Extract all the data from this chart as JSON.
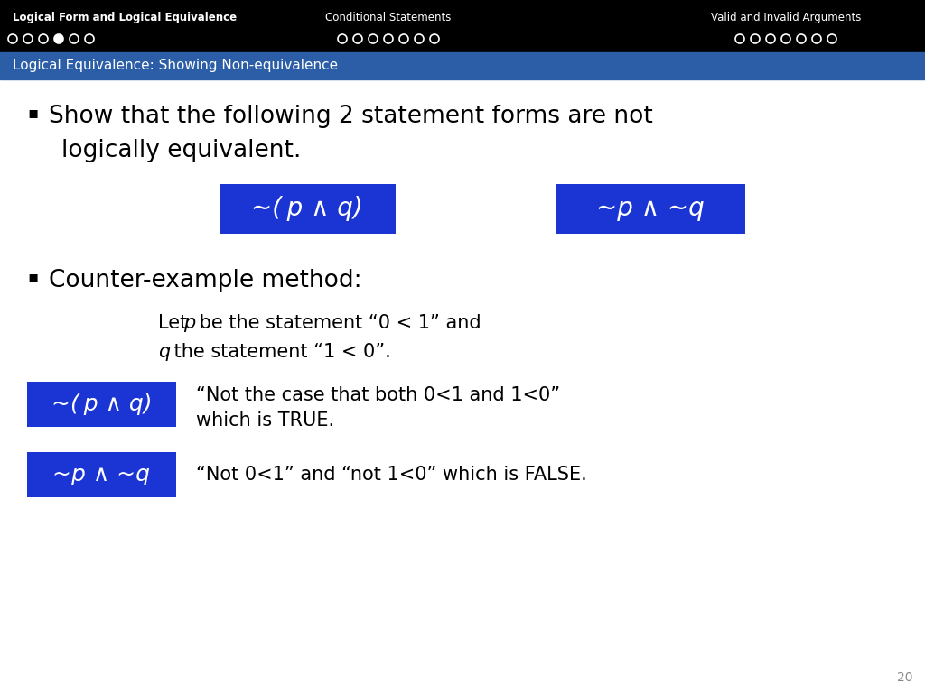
{
  "title_section": {
    "left_label": "Logical Form and Logical Equivalence",
    "center_label": "Conditional Statements",
    "right_label": "Valid and Invalid Arguments",
    "dots_left": [
      0,
      0,
      0,
      1,
      0,
      0
    ],
    "dots_center": [
      0,
      0,
      0,
      0,
      0,
      0,
      0
    ],
    "dots_right": [
      0,
      0,
      0,
      0,
      0,
      0,
      0
    ],
    "bg_color": "#000000",
    "text_color": "#ffffff"
  },
  "subtitle": "Logical Equivalence: Showing Non-equivalence",
  "subtitle_bg": "#2B5EA7",
  "subtitle_text_color": "#ffffff",
  "slide_bg": "#ffffff",
  "page_number": "20",
  "box1_label_parts": [
    "~(",
    "p",
    " ∧ ",
    "q",
    ")"
  ],
  "box2_label_parts": [
    "~",
    "p",
    " ∧ ~",
    "q"
  ],
  "box_color": "#1A35D4",
  "box_text_color": "#ffffff",
  "smallbox1_label_parts": [
    "~(",
    "p",
    " ∧ ",
    "q",
    ")"
  ],
  "smallbox2_label_parts": [
    "~",
    "p",
    " ∧ ~",
    "q"
  ],
  "smallbox1_desc_line1": "“Not the case that both 0<1 and 1<0”",
  "smallbox1_desc_line2": "which is TRUE.",
  "smallbox2_desc": "“Not 0<1” and “not 1<0” which is FALSE.",
  "bullet_marker": "▪"
}
